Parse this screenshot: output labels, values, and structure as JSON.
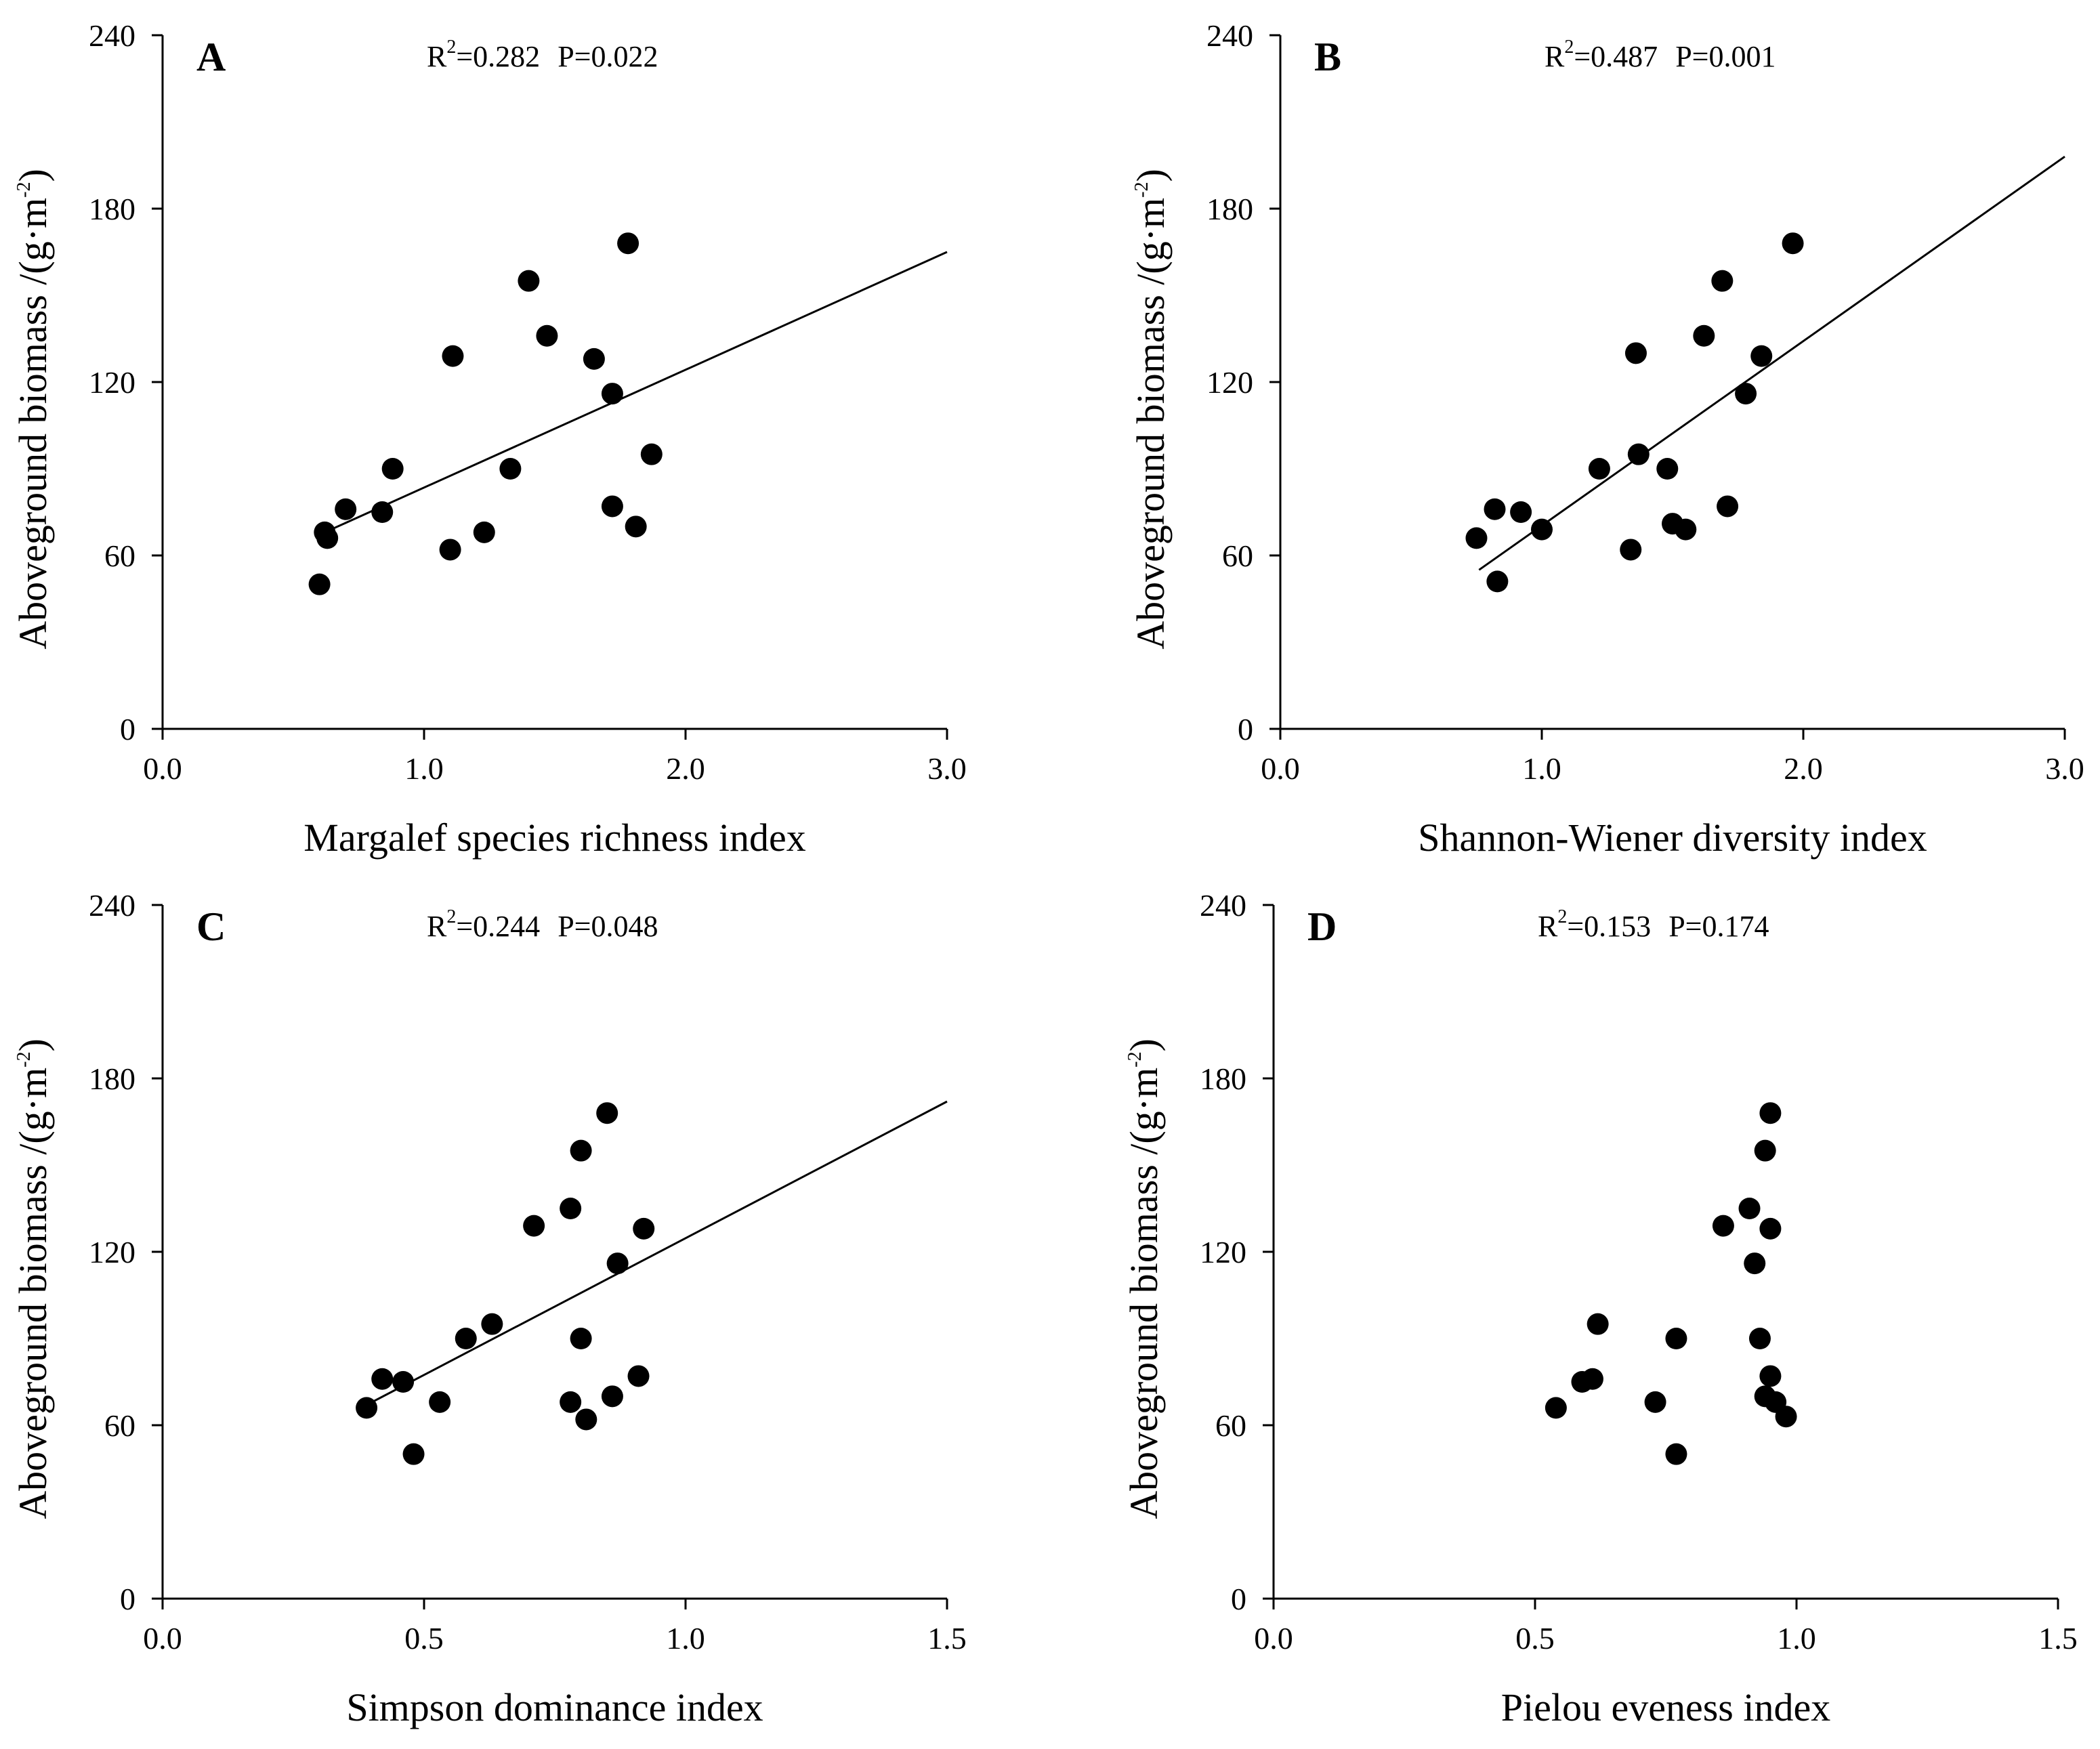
{
  "chart_data": [
    {
      "type": "scatter",
      "panel": "A",
      "stats": {
        "prefix": "R",
        "sup": "2",
        "r2": "=0.282",
        "p": "P=0.022"
      },
      "xlabel": "Margalef species richness index",
      "ylabel": {
        "main": "Aboveground biomass /(g·m",
        "sup": "-2",
        "close": ")"
      },
      "xlim": [
        0,
        3
      ],
      "ylim": [
        0,
        240
      ],
      "xticks": [
        "0.0",
        "1.0",
        "2.0",
        "3.0"
      ],
      "yticks": [
        "0",
        "60",
        "120",
        "180",
        "240"
      ],
      "x": [
        0.6,
        0.62,
        0.63,
        0.7,
        0.84,
        0.88,
        1.1,
        1.11,
        1.23,
        1.33,
        1.4,
        1.47,
        1.65,
        1.72,
        1.72,
        1.78,
        1.81,
        1.87
      ],
      "y": [
        50,
        68,
        66,
        76,
        75,
        90,
        62,
        129,
        68,
        90,
        155,
        136,
        128,
        116,
        77,
        168,
        70,
        95
      ],
      "fit": {
        "x": [
          0.62,
          3.0
        ],
        "y": [
          68,
          165
        ]
      }
    },
    {
      "type": "scatter",
      "panel": "B",
      "stats": {
        "prefix": "R",
        "sup": "2",
        "r2": "=0.487",
        "p": "P=0.001"
      },
      "xlabel": "Shannon-Wiener diversity index",
      "ylabel": {
        "main": "Aboveground biomass /(g·m",
        "sup": "-2",
        "close": ")"
      },
      "xlim": [
        0,
        3
      ],
      "ylim": [
        0,
        240
      ],
      "xticks": [
        "0.0",
        "1.0",
        "2.0",
        "3.0"
      ],
      "yticks": [
        "0",
        "60",
        "120",
        "180",
        "240"
      ],
      "x": [
        0.75,
        0.82,
        0.83,
        0.92,
        1.0,
        1.22,
        1.34,
        1.36,
        1.37,
        1.48,
        1.5,
        1.55,
        1.62,
        1.69,
        1.71,
        1.78,
        1.84,
        1.96
      ],
      "y": [
        66,
        76,
        51,
        75,
        69,
        90,
        62,
        130,
        95,
        90,
        71,
        69,
        136,
        155,
        77,
        116,
        129,
        168
      ],
      "fit": {
        "x": [
          0.76,
          3.0
        ],
        "y": [
          55,
          198
        ]
      }
    },
    {
      "type": "scatter",
      "panel": "C",
      "stats": {
        "prefix": "R",
        "sup": "2",
        "r2": "=0.244",
        "p": "P=0.048"
      },
      "xlabel": "Simpson dominance index",
      "ylabel": {
        "main": "Aboveground biomass /(g·m",
        "sup": "-2",
        "close": ")"
      },
      "xlim": [
        0,
        1.5
      ],
      "ylim": [
        0,
        240
      ],
      "xticks": [
        "0.0",
        "0.5",
        "1.0",
        "1.5"
      ],
      "yticks": [
        "0",
        "60",
        "120",
        "180",
        "240"
      ],
      "x": [
        0.39,
        0.42,
        0.46,
        0.48,
        0.53,
        0.58,
        0.63,
        0.71,
        0.78,
        0.78,
        0.8,
        0.8,
        0.81,
        0.85,
        0.86,
        0.87,
        0.91,
        0.92
      ],
      "y": [
        66,
        76,
        75,
        50,
        68,
        90,
        95,
        129,
        68,
        135,
        155,
        90,
        62,
        168,
        70,
        116,
        77,
        128
      ],
      "fit": {
        "x": [
          0.39,
          1.5
        ],
        "y": [
          67,
          172
        ]
      }
    },
    {
      "type": "scatter",
      "panel": "D",
      "stats": {
        "prefix": "R",
        "sup": "2",
        "r2": "=0.153",
        "p": "P=0.174"
      },
      "xlabel": "Pielou eveness index",
      "ylabel": {
        "main": "Aboveground biomass /(g·m",
        "sup": "-2",
        "close": ")"
      },
      "xlim": [
        0,
        1.5
      ],
      "ylim": [
        0,
        240
      ],
      "xticks": [
        "0.0",
        "0.5",
        "1.0",
        "1.5"
      ],
      "yticks": [
        "0",
        "60",
        "120",
        "180",
        "240"
      ],
      "x": [
        0.54,
        0.59,
        0.61,
        0.62,
        0.73,
        0.77,
        0.77,
        0.86,
        0.91,
        0.92,
        0.93,
        0.94,
        0.94,
        0.95,
        0.95,
        0.95,
        0.96,
        0.98
      ],
      "y": [
        66,
        75,
        76,
        95,
        68,
        90,
        50,
        129,
        135,
        116,
        90,
        70,
        155,
        168,
        128,
        77,
        68,
        63
      ],
      "fit": null
    }
  ]
}
